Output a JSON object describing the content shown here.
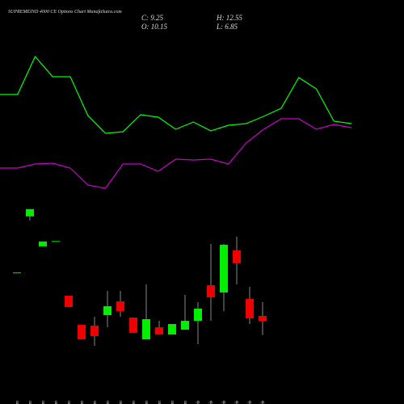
{
  "chart_data": {
    "type": "candlestick",
    "title": "SUPREMEIND 4000 CE Options Chart ManafaSutra.com",
    "ohlc_labels": {
      "close": "C: 9.25",
      "high": "H: 12.55",
      "open": "O: 10.15",
      "low": "L: 6.85"
    },
    "categories": [
      "01 Jan",
      "09 Jan",
      "10 Jan",
      "16 Jan",
      "19 Jan",
      "20 Jan",
      "21 Jan",
      "22 Jan",
      "23 Jan",
      "27 Jan",
      "28 Jan",
      "29 Jan",
      "30 Jan",
      "31 Jan",
      "01 Feb",
      "03 Feb",
      "04 Feb",
      "05 Feb",
      "06 Feb",
      "07 Feb"
    ],
    "open": [
      17.6,
      27.37,
      22.19,
      23.03,
      13.65,
      8.61,
      8.47,
      10.29,
      12.67,
      9.87,
      6.09,
      8.19,
      6.93,
      7.77,
      9.31,
      15.47,
      14.21,
      21.49,
      13.09,
      10.15
    ],
    "close": [
      17.6,
      28.63,
      23.03,
      23.03,
      11.69,
      6.09,
      6.65,
      11.83,
      11.0,
      7.21,
      9.59,
      6.93,
      8.75,
      9.31,
      11.41,
      13.37,
      22.47,
      19.25,
      9.73,
      9.25
    ],
    "high": [
      17.6,
      28.63,
      23.03,
      23.03,
      13.65,
      8.61,
      10.01,
      14.49,
      14.49,
      9.87,
      15.61,
      9.31,
      8.75,
      13.79,
      12.53,
      22.61,
      22.61,
      23.87,
      15.19,
      12.55
    ],
    "low": [
      17.6,
      26.67,
      22.19,
      23.03,
      11.69,
      6.09,
      4.97,
      8.19,
      10.01,
      7.21,
      6.09,
      6.93,
      6.93,
      7.77,
      5.25,
      9.31,
      10.99,
      15.61,
      8.75,
      6.85
    ],
    "up_color": "#00ee00",
    "down_color": "#ee0000",
    "ylim": [
      4,
      30
    ],
    "indicators": {
      "x": [
        0,
        1,
        2,
        3,
        4,
        5,
        6,
        7,
        8,
        9,
        10,
        11,
        12,
        13,
        14,
        15,
        16,
        17,
        18,
        19,
        20
      ],
      "xlim": [
        0,
        20
      ],
      "ylim": [
        0,
        500
      ],
      "lines": [
        {
          "color": "#00ff00",
          "values": [
            383,
            383,
            430,
            405,
            405,
            357,
            335,
            337,
            358,
            355,
            340,
            349,
            338,
            345,
            347,
            356,
            366,
            404,
            390,
            350,
            347
          ]
        },
        {
          "color": "#cc00cc",
          "values": [
            292,
            292,
            297,
            298,
            292,
            271,
            267,
            297,
            297,
            288,
            303,
            302,
            303,
            297,
            323,
            340,
            353,
            353,
            340,
            346,
            342
          ]
        }
      ]
    }
  }
}
